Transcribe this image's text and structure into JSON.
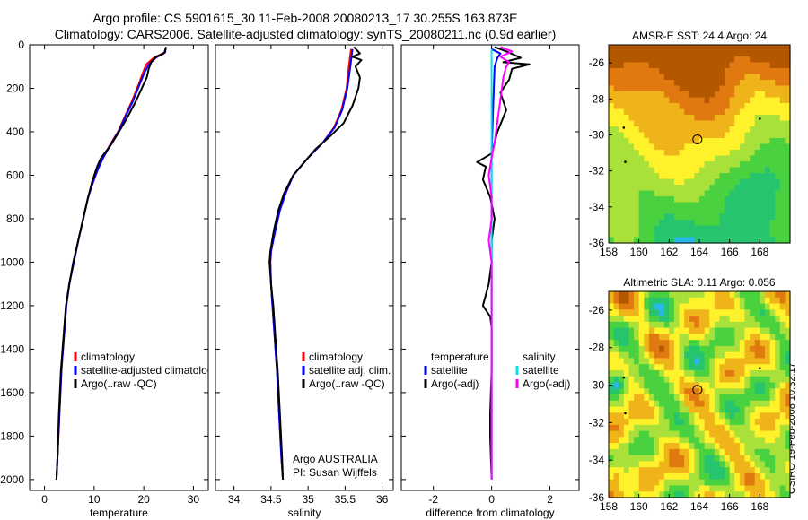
{
  "header": {
    "line1": "Argo profile: CS 5901615_30 11-Feb-2008 20080213_17 30.255S 163.873E",
    "line2": "Climatology: CARS2006. Satellite-adjusted climatology: synTS_20080211.nc (0.9d earlier)"
  },
  "side_stamp": "CSIRO 19-Feb-2008 10:32:17",
  "chart_data": [
    {
      "id": "temperature",
      "type": "line",
      "xlabel": "temperature",
      "xlim": [
        -3,
        33
      ],
      "xticks": [
        0,
        10,
        20,
        30
      ],
      "ylim": [
        2050,
        0
      ],
      "yticks": [
        0,
        200,
        400,
        600,
        800,
        1000,
        1200,
        1400,
        1600,
        1800,
        2000
      ],
      "legend": {
        "placement": "lower-middle",
        "entries": [
          "climatology",
          "satellite-adjusted climatology",
          "Argo(..raw -QC)"
        ]
      },
      "series": [
        {
          "name": "climatology",
          "color": "#ff0000",
          "points": [
            [
              24.4,
              20
            ],
            [
              24.2,
              35
            ],
            [
              22.0,
              60
            ],
            [
              20.5,
              90
            ],
            [
              19.8,
              130
            ],
            [
              19.0,
              180
            ],
            [
              17.6,
              260
            ],
            [
              16.2,
              330
            ],
            [
              14.8,
              400
            ],
            [
              13.2,
              460
            ],
            [
              11.8,
              520
            ],
            [
              10.8,
              570
            ],
            [
              9.8,
              630
            ],
            [
              8.8,
              700
            ],
            [
              7.8,
              800
            ],
            [
              6.8,
              900
            ],
            [
              5.9,
              1000
            ],
            [
              5.0,
              1100
            ],
            [
              4.4,
              1200
            ],
            [
              3.9,
              1350
            ],
            [
              3.4,
              1500
            ],
            [
              3.0,
              1700
            ],
            [
              2.6,
              1900
            ],
            [
              2.4,
              2000
            ]
          ]
        },
        {
          "name": "satellite-adjusted climatology",
          "color": "#0000ff",
          "points": [
            [
              24.4,
              20
            ],
            [
              24.3,
              35
            ],
            [
              22.4,
              60
            ],
            [
              21.0,
              90
            ],
            [
              20.1,
              130
            ],
            [
              19.2,
              180
            ],
            [
              17.8,
              260
            ],
            [
              16.3,
              330
            ],
            [
              14.9,
              400
            ],
            [
              13.3,
              460
            ],
            [
              11.8,
              520
            ],
            [
              10.8,
              570
            ],
            [
              9.8,
              630
            ],
            [
              8.8,
              700
            ],
            [
              7.8,
              800
            ],
            [
              6.8,
              900
            ],
            [
              5.9,
              1000
            ],
            [
              5.0,
              1100
            ],
            [
              4.4,
              1200
            ],
            [
              3.9,
              1350
            ],
            [
              3.4,
              1500
            ],
            [
              3.0,
              1700
            ],
            [
              2.6,
              1900
            ],
            [
              2.4,
              2000
            ]
          ]
        },
        {
          "name": "Argo(..raw -QC)",
          "color": "#000000",
          "points": [
            [
              24.5,
              10
            ],
            [
              24.3,
              25
            ],
            [
              24.2,
              35
            ],
            [
              23.9,
              42
            ],
            [
              22.5,
              55
            ],
            [
              21.5,
              80
            ],
            [
              21.0,
              110
            ],
            [
              20.6,
              150
            ],
            [
              19.6,
              200
            ],
            [
              18.4,
              260
            ],
            [
              16.8,
              330
            ],
            [
              15.0,
              400
            ],
            [
              13.4,
              460
            ],
            [
              11.4,
              520
            ],
            [
              10.6,
              560
            ],
            [
              9.6,
              630
            ],
            [
              8.6,
              720
            ],
            [
              7.6,
              820
            ],
            [
              6.6,
              920
            ],
            [
              5.8,
              1000
            ],
            [
              5.0,
              1100
            ],
            [
              4.3,
              1200
            ],
            [
              3.8,
              1350
            ],
            [
              3.3,
              1500
            ],
            [
              2.9,
              1700
            ],
            [
              2.6,
              1900
            ],
            [
              2.4,
              2000
            ]
          ]
        }
      ]
    },
    {
      "id": "salinity",
      "type": "line",
      "xlabel": "salinity",
      "xlim": [
        33.75,
        36.15
      ],
      "xticks": [
        34,
        34.5,
        35,
        35.5,
        36
      ],
      "ylim": [
        2050,
        0
      ],
      "legend": {
        "placement": "lower-middle",
        "entries": [
          "climatology",
          "satellite adj. clim.",
          "Argo(..raw -QC)"
        ]
      },
      "annotations": [
        "Argo AUSTRALIA",
        "PI: Susan Wijffels"
      ],
      "series": [
        {
          "name": "climatology",
          "color": "#ff0000",
          "points": [
            [
              35.58,
              20
            ],
            [
              35.55,
              100
            ],
            [
              35.52,
              200
            ],
            [
              35.45,
              300
            ],
            [
              35.35,
              380
            ],
            [
              35.2,
              450
            ],
            [
              35.0,
              520
            ],
            [
              34.8,
              600
            ],
            [
              34.7,
              680
            ],
            [
              34.62,
              760
            ],
            [
              34.56,
              850
            ],
            [
              34.5,
              950
            ],
            [
              34.49,
              1000
            ],
            [
              34.5,
              1100
            ],
            [
              34.52,
              1200
            ],
            [
              34.55,
              1350
            ],
            [
              34.58,
              1500
            ],
            [
              34.61,
              1700
            ],
            [
              34.64,
              1900
            ],
            [
              34.66,
              2000
            ]
          ]
        },
        {
          "name": "satellite-adjusted climatology",
          "color": "#0000ff",
          "points": [
            [
              35.6,
              20
            ],
            [
              35.57,
              100
            ],
            [
              35.53,
              200
            ],
            [
              35.46,
              300
            ],
            [
              35.36,
              380
            ],
            [
              35.2,
              450
            ],
            [
              35.0,
              520
            ],
            [
              34.8,
              600
            ],
            [
              34.7,
              680
            ],
            [
              34.62,
              760
            ],
            [
              34.56,
              850
            ],
            [
              34.5,
              950
            ],
            [
              34.49,
              1000
            ],
            [
              34.5,
              1100
            ],
            [
              34.52,
              1200
            ],
            [
              34.55,
              1350
            ],
            [
              34.58,
              1500
            ],
            [
              34.61,
              1700
            ],
            [
              34.64,
              1900
            ],
            [
              34.66,
              2000
            ]
          ]
        },
        {
          "name": "Argo(..raw -QC)",
          "color": "#000000",
          "points": [
            [
              35.62,
              10
            ],
            [
              35.66,
              25
            ],
            [
              35.7,
              40
            ],
            [
              35.6,
              55
            ],
            [
              35.72,
              70
            ],
            [
              35.64,
              100
            ],
            [
              35.7,
              150
            ],
            [
              35.68,
              200
            ],
            [
              35.6,
              280
            ],
            [
              35.48,
              360
            ],
            [
              35.3,
              420
            ],
            [
              35.1,
              480
            ],
            [
              34.95,
              540
            ],
            [
              34.8,
              600
            ],
            [
              34.68,
              680
            ],
            [
              34.6,
              760
            ],
            [
              34.54,
              850
            ],
            [
              34.49,
              950
            ],
            [
              34.48,
              1000
            ],
            [
              34.5,
              1100
            ],
            [
              34.53,
              1200
            ],
            [
              34.56,
              1350
            ],
            [
              34.59,
              1500
            ],
            [
              34.62,
              1700
            ],
            [
              34.65,
              1900
            ],
            [
              34.66,
              2000
            ]
          ]
        }
      ]
    },
    {
      "id": "difference",
      "type": "line",
      "xlabel": "difference from climatology",
      "xlim": [
        -3.1,
        3.0
      ],
      "xticks": [
        -2,
        0,
        2
      ],
      "ylim": [
        2050,
        0
      ],
      "legend": {
        "placement": "lower",
        "headers": [
          "temperature",
          "salinity"
        ],
        "entries": [
          "satellite",
          "Argo(-adj)",
          "satellite",
          "Argo(-adj)"
        ]
      },
      "series": [
        {
          "name": "temperature satellite",
          "color": "#0000ff",
          "points": [
            [
              0.0,
              20
            ],
            [
              0.3,
              40
            ],
            [
              0.2,
              60
            ],
            [
              0.1,
              100
            ],
            [
              0.05,
              300
            ],
            [
              0.0,
              500
            ],
            [
              0.0,
              1000
            ],
            [
              0.0,
              2000
            ]
          ]
        },
        {
          "name": "temperature Argo(-adj)",
          "color": "#000000",
          "points": [
            [
              0.1,
              10
            ],
            [
              0.5,
              30
            ],
            [
              1.0,
              60
            ],
            [
              0.4,
              80
            ],
            [
              1.3,
              90
            ],
            [
              0.7,
              110
            ],
            [
              0.6,
              160
            ],
            [
              0.3,
              220
            ],
            [
              0.5,
              300
            ],
            [
              0.2,
              400
            ],
            [
              0.0,
              500
            ],
            [
              -0.5,
              540
            ],
            [
              -0.2,
              560
            ],
            [
              -0.3,
              620
            ],
            [
              -0.05,
              700
            ],
            [
              0.1,
              800
            ],
            [
              0.0,
              900
            ],
            [
              0.0,
              1000
            ],
            [
              -0.1,
              1100
            ],
            [
              -0.3,
              1200
            ],
            [
              -0.05,
              1250
            ],
            [
              0.0,
              1300
            ],
            [
              0.0,
              1500
            ],
            [
              -0.05,
              1700
            ],
            [
              -0.05,
              1800
            ],
            [
              0.0,
              2000
            ]
          ]
        },
        {
          "name": "salinity satellite",
          "color": "#00e5ee",
          "points": [
            [
              0.0,
              20
            ],
            [
              0.0,
              200
            ],
            [
              0.0,
              500
            ],
            [
              0.0,
              1000
            ],
            [
              0.0,
              2000
            ]
          ]
        },
        {
          "name": "salinity Argo(-adj)",
          "color": "#ff00ff",
          "points": [
            [
              0.3,
              10
            ],
            [
              0.7,
              30
            ],
            [
              0.3,
              55
            ],
            [
              0.6,
              80
            ],
            [
              0.5,
              100
            ],
            [
              0.4,
              150
            ],
            [
              0.3,
              250
            ],
            [
              0.2,
              350
            ],
            [
              0.1,
              450
            ],
            [
              0.0,
              520
            ],
            [
              -0.1,
              600
            ],
            [
              0.0,
              700
            ],
            [
              0.0,
              800
            ],
            [
              -0.1,
              900
            ],
            [
              0.0,
              1000
            ],
            [
              0.0,
              1100
            ],
            [
              0.0,
              1300
            ],
            [
              0.0,
              1500
            ],
            [
              0.0,
              1700
            ],
            [
              0.0,
              2000
            ]
          ]
        }
      ]
    },
    {
      "id": "sst_map",
      "type": "heatmap",
      "title": "AMSR-E SST: 24.4  Argo: 24",
      "xlim": [
        158,
        170
      ],
      "ylim": [
        -36,
        -25
      ],
      "xticks": [
        158,
        160,
        162,
        164,
        166,
        168
      ],
      "yticks": [
        -26,
        -28,
        -30,
        -32,
        -34,
        -36
      ],
      "marker": [
        163.87,
        -30.25
      ],
      "colors": [
        "#1e90ff",
        "#29b6e8",
        "#27c46f",
        "#49d13f",
        "#a9e13a",
        "#fff22a",
        "#f0b41b",
        "#e07a10",
        "#b45800"
      ]
    },
    {
      "id": "sla_map",
      "type": "heatmap",
      "title": "Altimetric SLA: 0.11  Argo: 0.056",
      "xlim": [
        158,
        170
      ],
      "ylim": [
        -36,
        -25
      ],
      "xticks": [
        158,
        160,
        162,
        164,
        166,
        168
      ],
      "yticks": [
        -26,
        -28,
        -30,
        -32,
        -34,
        -36
      ],
      "marker": [
        163.87,
        -30.25
      ],
      "colors": [
        "#1e90ff",
        "#29b6e8",
        "#27c46f",
        "#49d13f",
        "#a9e13a",
        "#fff22a",
        "#f0b41b",
        "#e07a10",
        "#b45800"
      ]
    }
  ]
}
